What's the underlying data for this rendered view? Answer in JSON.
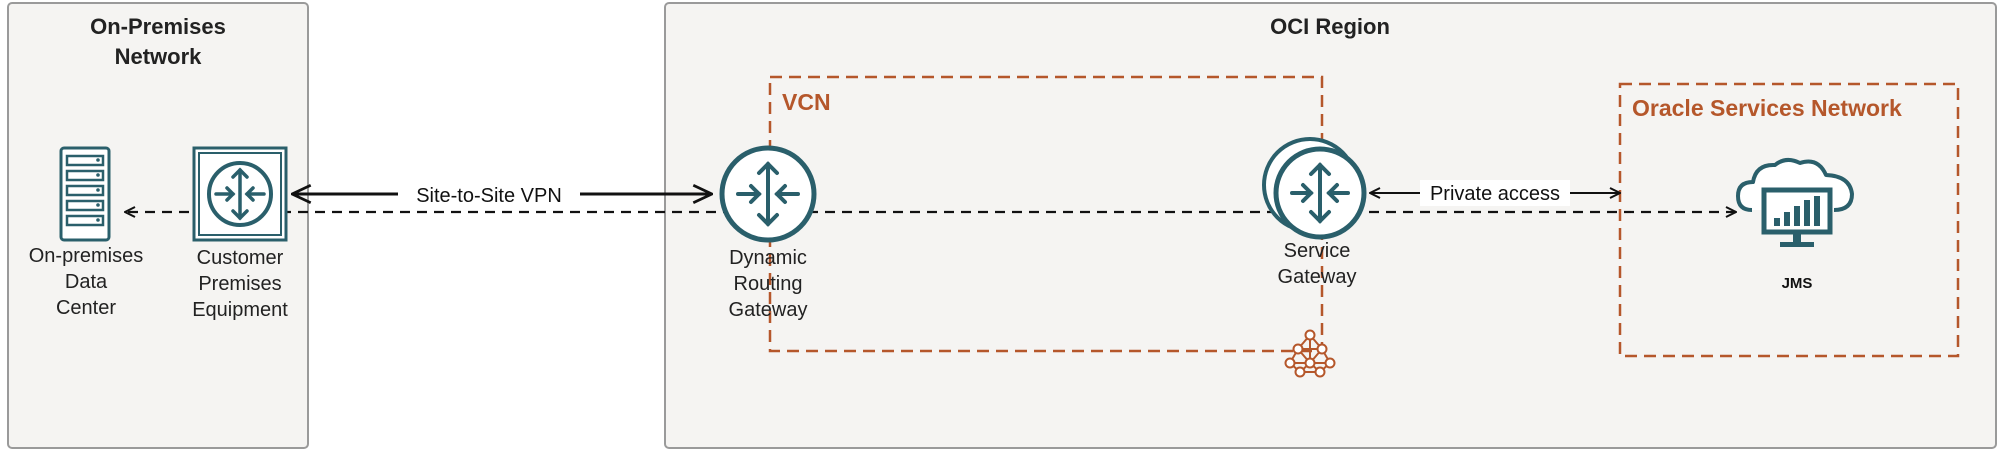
{
  "regions": {
    "on_premises": {
      "title_line1": "On-Premises",
      "title_line2": "Network"
    },
    "oci": {
      "title": "OCI Region"
    },
    "vcn": {
      "title": "VCN"
    },
    "osn": {
      "title": "Oracle Services Network"
    }
  },
  "nodes": {
    "data_center": {
      "line1": "On-premises",
      "line2": "Data",
      "line3": "Center",
      "icon": "server-rack-icon"
    },
    "cpe": {
      "line1": "Customer",
      "line2": "Premises",
      "line3": "Equipment",
      "icon": "router-icon"
    },
    "drg": {
      "line1": "Dynamic",
      "line2": "Routing",
      "line3": "Gateway",
      "icon": "router-icon"
    },
    "service_gateway": {
      "line1": "Service",
      "line2": "Gateway",
      "icon": "router-icon"
    },
    "jms": {
      "label": "JMS",
      "icon": "cloud-monitor-icon"
    }
  },
  "connections": {
    "vpn": {
      "label": "Site-to-Site VPN"
    },
    "private_access": {
      "label": "Private access"
    }
  },
  "colors": {
    "region_border": "#9a9a9a",
    "region_fill": "#f5f4f2",
    "accent": "#b5572b",
    "icon_teal": "#2a5f6b",
    "text": "#222222"
  }
}
